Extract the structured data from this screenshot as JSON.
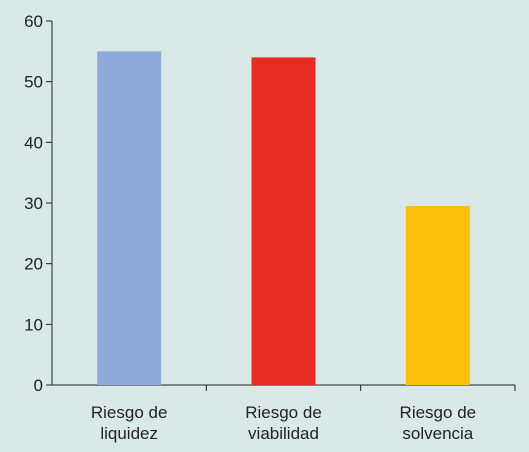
{
  "chart_data": {
    "type": "bar",
    "categories": [
      [
        "Riesgo de",
        "liquidez"
      ],
      [
        "Riesgo de",
        "viabilidad"
      ],
      [
        "Riesgo de",
        "solvencia"
      ]
    ],
    "values": [
      55,
      54,
      29.5
    ],
    "colors": [
      "#8eaadb",
      "#e52d24",
      "#fcbf0c"
    ],
    "yticks": [
      "0",
      "10",
      "20",
      "30",
      "40",
      "50",
      "60"
    ],
    "ylim": [
      0,
      60
    ],
    "title": "",
    "xlabel": "",
    "ylabel": "",
    "grid": false,
    "legend": "none"
  },
  "colors": {
    "background": "#dbe8e8",
    "axis": "#222222"
  }
}
